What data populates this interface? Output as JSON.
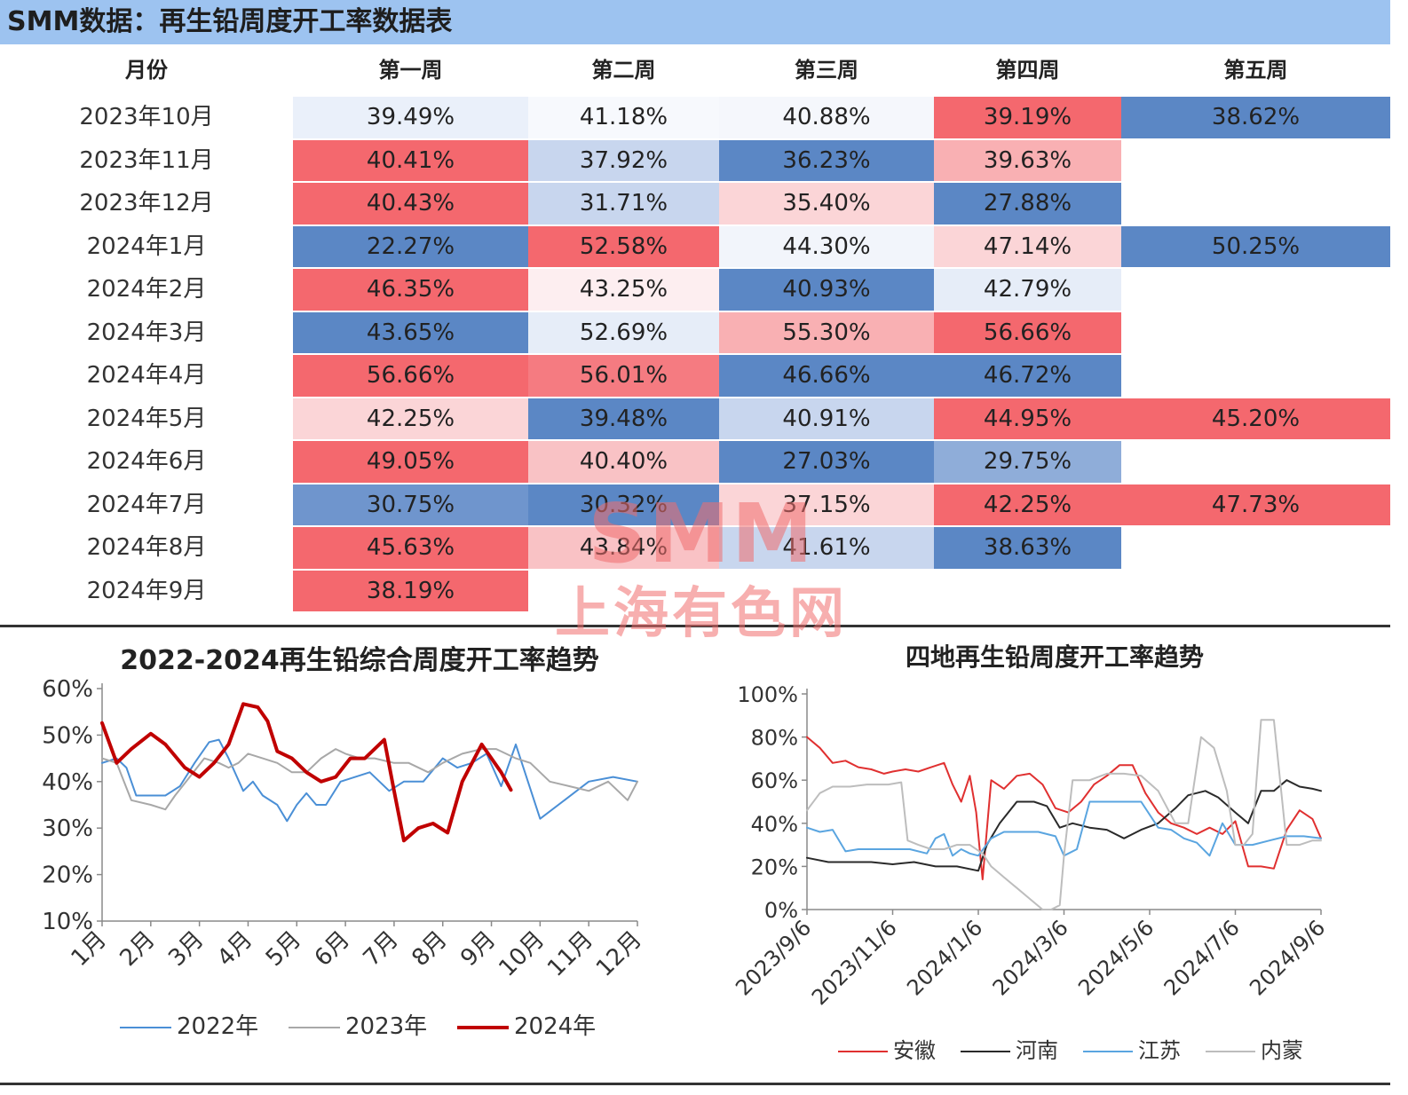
{
  "header": {
    "title": "SMM数据：再生铅周度开工率数据表"
  },
  "table": {
    "columns": [
      "月份",
      "第一周",
      "第二周",
      "第三周",
      "第四周",
      "第五周"
    ],
    "rows": [
      {
        "month": "2023年10月",
        "cells": [
          "39.49%",
          "41.18%",
          "40.88%",
          "39.19%",
          "38.62%"
        ]
      },
      {
        "month": "2023年11月",
        "cells": [
          "40.41%",
          "37.92%",
          "36.23%",
          "39.63%",
          ""
        ]
      },
      {
        "month": "2023年12月",
        "cells": [
          "40.43%",
          "31.71%",
          "35.40%",
          "27.88%",
          ""
        ]
      },
      {
        "month": "2024年1月",
        "cells": [
          "22.27%",
          "52.58%",
          "44.30%",
          "47.14%",
          "50.25%"
        ]
      },
      {
        "month": "2024年2月",
        "cells": [
          "46.35%",
          "43.25%",
          "40.93%",
          "42.79%",
          ""
        ]
      },
      {
        "month": "2024年3月",
        "cells": [
          "43.65%",
          "52.69%",
          "55.30%",
          "56.66%",
          ""
        ]
      },
      {
        "month": "2024年4月",
        "cells": [
          "56.66%",
          "56.01%",
          "46.66%",
          "46.72%",
          ""
        ]
      },
      {
        "month": "2024年5月",
        "cells": [
          "42.25%",
          "39.48%",
          "40.91%",
          "44.95%",
          "45.20%"
        ]
      },
      {
        "month": "2024年6月",
        "cells": [
          "49.05%",
          "40.40%",
          "27.03%",
          "29.75%",
          ""
        ]
      },
      {
        "month": "2024年7月",
        "cells": [
          "30.75%",
          "30.32%",
          "37.15%",
          "42.25%",
          "47.73%"
        ]
      },
      {
        "month": "2024年8月",
        "cells": [
          "45.63%",
          "43.84%",
          "41.61%",
          "38.63%",
          ""
        ]
      },
      {
        "month": "2024年9月",
        "cells": [
          "38.19%",
          "",
          "",
          "",
          ""
        ]
      }
    ],
    "cell_colors": [
      [
        "#eaf0fa",
        "#f7f9fd",
        "#f5f7fc",
        "#f4686e",
        "#5b87c5"
      ],
      [
        "#f4686e",
        "#c8d6ee",
        "#5b87c5",
        "#f9b0b3",
        ""
      ],
      [
        "#f4686e",
        "#c8d6ee",
        "#fbd5d7",
        "#5b87c5",
        ""
      ],
      [
        "#5b87c5",
        "#f4686e",
        "#f2f5fb",
        "#fbd5d7",
        "#5b87c5"
      ],
      [
        "#f4686e",
        "#fdeef0",
        "#5b87c5",
        "#e6edf8",
        ""
      ],
      [
        "#5b87c5",
        "#e6edf8",
        "#f9b0b3",
        "#f4686e",
        ""
      ],
      [
        "#f4686e",
        "#f57b81",
        "#5b87c5",
        "#5b87c5",
        ""
      ],
      [
        "#fbd5d7",
        "#5b87c5",
        "#c8d6ee",
        "#f4686e",
        "#f4686e"
      ],
      [
        "#f4686e",
        "#f9c2c5",
        "#5b87c5",
        "#8fadd9",
        ""
      ],
      [
        "#6f95cd",
        "#5b87c5",
        "#fbd5d7",
        "#f4686e",
        "#f4686e"
      ],
      [
        "#f4686e",
        "#f9c2c5",
        "#c8d6ee",
        "#5b87c5",
        ""
      ],
      [
        "#f4686e",
        "",
        "",
        "",
        ""
      ]
    ]
  },
  "watermark": {
    "line1": "SMM",
    "line2": "上海有色网"
  },
  "chart_data": [
    {
      "type": "line",
      "title": "2022-2024再生铅综合周度开工率趋势",
      "xlabel": "",
      "ylabel": "",
      "categories": [
        "1月",
        "2月",
        "3月",
        "4月",
        "5月",
        "6月",
        "7月",
        "8月",
        "9月",
        "10月",
        "11月",
        "12月"
      ],
      "x_range": [
        1,
        12
      ],
      "ylim": [
        10,
        60
      ],
      "yticks": [
        "10%",
        "20%",
        "30%",
        "40%",
        "50%",
        "60%"
      ],
      "legend": "bottom",
      "series": [
        {
          "name": "2022年",
          "color": "#4a8fd6",
          "width": 2,
          "x": [
            1,
            1.3,
            1.5,
            1.7,
            2.0,
            2.3,
            2.6,
            2.9,
            3.2,
            3.4,
            3.6,
            3.9,
            4.1,
            4.3,
            4.6,
            4.8,
            5.0,
            5.2,
            5.4,
            5.6,
            5.9,
            6.2,
            6.5,
            6.9,
            7.2,
            7.6,
            8.0,
            8.3,
            8.6,
            8.9,
            9.2,
            9.5,
            10.0,
            10.5,
            11.0,
            11.5,
            12.0
          ],
          "y": [
            44,
            45,
            43,
            37,
            37,
            37,
            39,
            44,
            48.5,
            49,
            45,
            38,
            40,
            37,
            35,
            31.5,
            35,
            37.5,
            35,
            35,
            40,
            41,
            42,
            38,
            40,
            40,
            45,
            43,
            44,
            46,
            39,
            48,
            32,
            36,
            40,
            41,
            40
          ]
        },
        {
          "name": "2023年",
          "color": "#a8a8a8",
          "width": 2,
          "x": [
            1,
            1.3,
            1.6,
            2.0,
            2.3,
            2.5,
            2.8,
            3.1,
            3.4,
            3.6,
            3.8,
            4.0,
            4.3,
            4.6,
            4.9,
            5.2,
            5.5,
            5.8,
            6.0,
            6.3,
            6.6,
            7.0,
            7.3,
            7.7,
            8.0,
            8.4,
            8.8,
            9.1,
            9.5,
            9.8,
            10.2,
            10.6,
            11.0,
            11.4,
            11.8,
            12.0
          ],
          "y": [
            45,
            44,
            36,
            35,
            34,
            37,
            41,
            45,
            44,
            43,
            44,
            46,
            45,
            44,
            42,
            42,
            45,
            47,
            46,
            45,
            45,
            44,
            44,
            42,
            44,
            46,
            47,
            47,
            45,
            44,
            40,
            39,
            38,
            40,
            36,
            40
          ]
        },
        {
          "name": "2024年",
          "color": "#c00000",
          "width": 4,
          "x": [
            1,
            1.3,
            1.6,
            2.0,
            2.3,
            2.7,
            3.0,
            3.3,
            3.6,
            3.9,
            4.2,
            4.4,
            4.6,
            4.9,
            5.2,
            5.5,
            5.8,
            6.1,
            6.4,
            6.8,
            7.0,
            7.2,
            7.5,
            7.8,
            8.1,
            8.4,
            8.8,
            9.2,
            9.4
          ],
          "y": [
            52.6,
            44,
            47,
            50.3,
            48,
            43,
            41,
            44,
            48,
            56.7,
            56,
            53,
            46.5,
            45,
            42,
            40,
            41,
            45,
            45,
            49,
            38,
            27.3,
            30,
            31,
            29,
            40,
            48,
            42,
            38.2
          ]
        }
      ]
    },
    {
      "type": "line",
      "title": "四地再生铅周度开工率趋势",
      "xlabel": "",
      "ylabel": "",
      "categories": [
        "2023/9/6",
        "2023/11/6",
        "2024/1/6",
        "2024/3/6",
        "2024/5/6",
        "2024/7/6",
        "2024/9/6"
      ],
      "x_range": [
        0,
        12
      ],
      "ylim": [
        0,
        100
      ],
      "yticks": [
        "0%",
        "20%",
        "40%",
        "60%",
        "80%",
        "100%"
      ],
      "legend": "bottom",
      "series": [
        {
          "name": "安徽",
          "color": "#e03030",
          "width": 2,
          "x": [
            0,
            0.3,
            0.6,
            0.9,
            1.2,
            1.5,
            1.8,
            2.0,
            2.3,
            2.6,
            2.9,
            3.2,
            3.4,
            3.6,
            3.8,
            3.95,
            4.1,
            4.3,
            4.6,
            4.9,
            5.2,
            5.5,
            5.8,
            6.1,
            6.4,
            6.7,
            7.0,
            7.3,
            7.6,
            7.9,
            8.2,
            8.5,
            8.8,
            9.1,
            9.4,
            9.7,
            10.0,
            10.3,
            10.6,
            10.9,
            11.2,
            11.5,
            11.8,
            12.0
          ],
          "y": [
            80,
            75,
            68,
            69,
            66,
            65,
            63,
            64,
            65,
            64,
            66,
            68,
            58,
            50,
            62,
            45,
            14,
            60,
            56,
            62,
            63,
            58,
            47,
            45,
            50,
            58,
            62,
            67,
            67,
            54,
            45,
            40,
            38,
            35,
            38,
            35,
            41,
            20,
            20,
            19,
            37,
            46,
            42,
            33
          ]
        },
        {
          "name": "河南",
          "color": "#2a2a2a",
          "width": 2,
          "x": [
            0,
            0.5,
            1.0,
            1.5,
            2.0,
            2.5,
            3.0,
            3.5,
            4.0,
            4.2,
            4.5,
            4.9,
            5.3,
            5.6,
            5.9,
            6.2,
            6.6,
            7.0,
            7.4,
            7.8,
            8.2,
            8.6,
            8.9,
            9.3,
            9.6,
            10.0,
            10.3,
            10.6,
            10.9,
            11.2,
            11.5,
            11.8,
            12.0
          ],
          "y": [
            24,
            22,
            22,
            22,
            21,
            22,
            20,
            20,
            18,
            30,
            40,
            50,
            50,
            48,
            38,
            40,
            38,
            37,
            33,
            37,
            40,
            47,
            53,
            55,
            52,
            45,
            40,
            55,
            55,
            60,
            57,
            56,
            55
          ]
        },
        {
          "name": "江苏",
          "color": "#5aa5e0",
          "width": 2,
          "x": [
            0,
            0.3,
            0.6,
            0.9,
            1.2,
            1.6,
            2.0,
            2.4,
            2.8,
            3.0,
            3.2,
            3.4,
            3.6,
            3.8,
            4.0,
            4.3,
            4.6,
            5.0,
            5.4,
            5.8,
            6.0,
            6.3,
            6.6,
            7.0,
            7.4,
            7.8,
            8.2,
            8.5,
            8.8,
            9.1,
            9.4,
            9.7,
            10.0,
            10.4,
            10.8,
            11.2,
            11.6,
            12.0
          ],
          "y": [
            38,
            36,
            37,
            27,
            28,
            28,
            28,
            28,
            26,
            33,
            35,
            25,
            28,
            26,
            25,
            33,
            36,
            36,
            36,
            34,
            25,
            28,
            50,
            50,
            50,
            50,
            38,
            37,
            33,
            31,
            25,
            40,
            30,
            30,
            32,
            34,
            34,
            33
          ]
        },
        {
          "name": "内蒙",
          "color": "#bdbdbd",
          "width": 2,
          "x": [
            0,
            0.3,
            0.6,
            1.0,
            1.4,
            1.9,
            2.2,
            2.35,
            2.6,
            2.9,
            3.2,
            3.5,
            3.8,
            4.1,
            4.3,
            4.6,
            4.9,
            5.2,
            5.5,
            5.7,
            5.9,
            6.0,
            6.2,
            6.6,
            7.0,
            7.4,
            7.8,
            8.2,
            8.6,
            8.9,
            9.2,
            9.5,
            9.8,
            10.0,
            10.2,
            10.4,
            10.6,
            10.9,
            11.2,
            11.5,
            11.8,
            12.0
          ],
          "y": [
            46,
            54,
            57,
            57,
            58,
            58,
            59,
            32,
            30,
            28,
            28,
            30,
            30,
            26,
            20,
            15,
            10,
            5,
            0,
            0,
            2,
            25,
            60,
            60,
            63,
            63,
            62,
            55,
            40,
            40,
            80,
            75,
            55,
            30,
            30,
            35,
            88,
            88,
            30,
            30,
            32,
            32
          ]
        }
      ]
    }
  ]
}
